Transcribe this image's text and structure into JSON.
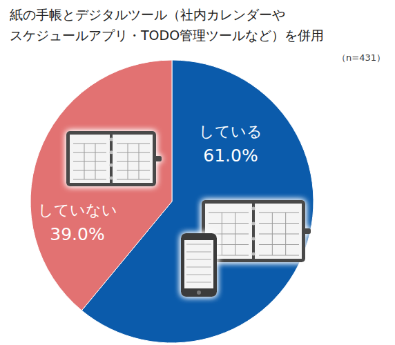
{
  "chart_data": {
    "type": "pie",
    "title": [
      "紙の手帳とデジタルツール（社内カレンダーや",
      "スケジュールアプリ・TODO管理ツールなど）を併用"
    ],
    "annotations": [
      "（n=431）"
    ],
    "categories": [
      "している",
      "していない"
    ],
    "values": [
      61.0,
      39.0
    ],
    "value_labels": [
      "61.0%",
      "39.0%"
    ],
    "colors": [
      "#0b5bab",
      "#e27272"
    ],
    "data_labels": true
  }
}
